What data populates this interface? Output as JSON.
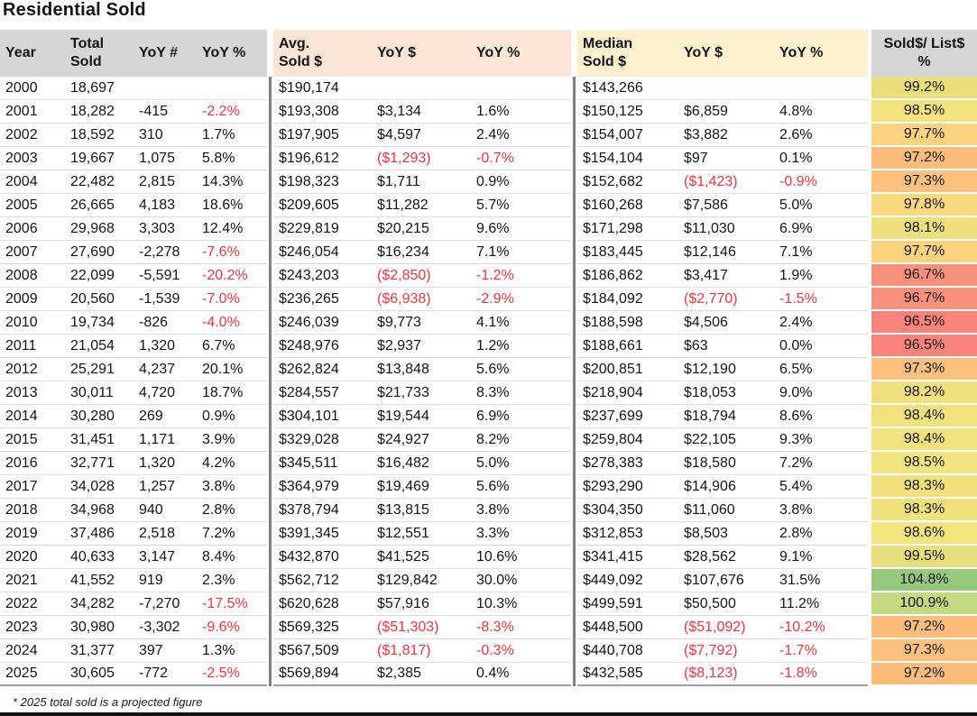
{
  "title": "Residential Sold",
  "footnote": "* 2025 total sold is a projected figure",
  "colors": {
    "header_left_group": "#d6d6d6",
    "header_avg_group": "#fbe5d6",
    "header_median_group": "#fcf0cd",
    "header_ratio": "#d6d6d6",
    "negative_text": "#f5333f",
    "section_divider": "#7f7f7f",
    "row_line": "#dcdcdc",
    "bottom_bar": "#111111"
  },
  "chart_data": {
    "type": "table",
    "title": "Residential Sold",
    "column_groups": [
      "",
      "Avg. Sold",
      "Median Sold",
      "Sold/List"
    ],
    "columns": [
      "Year",
      "Total\nSold",
      "YoY #",
      "YoY %",
      "Avg.\nSold $",
      "YoY $",
      "YoY %",
      "Median\nSold $",
      "YoY $",
      "YoY %",
      "Sold$/ List$\n%"
    ],
    "rows": [
      {
        "year": "2000",
        "total_sold": "18,697",
        "yoy_num": "",
        "yoy_pct": "",
        "avg_sold": "$190,174",
        "avg_yoy_dollar": "",
        "avg_yoy_pct": "",
        "med_sold": "$143,266",
        "med_yoy_dollar": "",
        "med_yoy_pct": "",
        "sold_list_pct": "99.2%",
        "sold_list_color": "#e9e07c"
      },
      {
        "year": "2001",
        "total_sold": "18,282",
        "yoy_num": "-415",
        "yoy_pct": "-2.2%",
        "avg_sold": "$193,308",
        "avg_yoy_dollar": "$3,134",
        "avg_yoy_pct": "1.6%",
        "med_sold": "$150,125",
        "med_yoy_dollar": "$6,859",
        "med_yoy_pct": "4.8%",
        "sold_list_pct": "98.5%",
        "sold_list_color": "#f3e37e"
      },
      {
        "year": "2002",
        "total_sold": "18,592",
        "yoy_num": "310",
        "yoy_pct": "1.7%",
        "avg_sold": "$197,905",
        "avg_yoy_dollar": "$4,597",
        "avg_yoy_pct": "2.4%",
        "med_sold": "$154,007",
        "med_yoy_dollar": "$3,882",
        "med_yoy_pct": "2.6%",
        "sold_list_pct": "97.7%",
        "sold_list_color": "#fbd27e"
      },
      {
        "year": "2003",
        "total_sold": "19,667",
        "yoy_num": "1,075",
        "yoy_pct": "5.8%",
        "avg_sold": "$196,612",
        "avg_yoy_dollar": "($1,293)",
        "avg_yoy_pct": "-0.7%",
        "med_sold": "$154,104",
        "med_yoy_dollar": "$97",
        "med_yoy_pct": "0.1%",
        "sold_list_pct": "97.2%",
        "sold_list_color": "#fcbd7b"
      },
      {
        "year": "2004",
        "total_sold": "22,482",
        "yoy_num": "2,815",
        "yoy_pct": "14.3%",
        "avg_sold": "$198,323",
        "avg_yoy_dollar": "$1,711",
        "avg_yoy_pct": "0.9%",
        "med_sold": "$152,682",
        "med_yoy_dollar": "($1,423)",
        "med_yoy_pct": "-0.9%",
        "sold_list_pct": "97.3%",
        "sold_list_color": "#fcc17c"
      },
      {
        "year": "2005",
        "total_sold": "26,665",
        "yoy_num": "4,183",
        "yoy_pct": "18.6%",
        "avg_sold": "$209,605",
        "avg_yoy_dollar": "$11,282",
        "avg_yoy_pct": "5.7%",
        "med_sold": "$160,268",
        "med_yoy_dollar": "$7,586",
        "med_yoy_pct": "5.0%",
        "sold_list_pct": "97.8%",
        "sold_list_color": "#f9d97e"
      },
      {
        "year": "2006",
        "total_sold": "29,968",
        "yoy_num": "3,303",
        "yoy_pct": "12.4%",
        "avg_sold": "$229,819",
        "avg_yoy_dollar": "$20,215",
        "avg_yoy_pct": "9.6%",
        "med_sold": "$171,298",
        "med_yoy_dollar": "$11,030",
        "med_yoy_pct": "6.9%",
        "sold_list_pct": "98.1%",
        "sold_list_color": "#f0e07d"
      },
      {
        "year": "2007",
        "total_sold": "27,690",
        "yoy_num": "-2,278",
        "yoy_pct": "-7.6%",
        "avg_sold": "$246,054",
        "avg_yoy_dollar": "$16,234",
        "avg_yoy_pct": "7.1%",
        "med_sold": "$183,445",
        "med_yoy_dollar": "$12,146",
        "med_yoy_pct": "7.1%",
        "sold_list_pct": "97.7%",
        "sold_list_color": "#fbd27e"
      },
      {
        "year": "2008",
        "total_sold": "22,099",
        "yoy_num": "-5,591",
        "yoy_pct": "-20.2%",
        "avg_sold": "$243,203",
        "avg_yoy_dollar": "($2,850)",
        "avg_yoy_pct": "-1.2%",
        "med_sold": "$186,862",
        "med_yoy_dollar": "$3,417",
        "med_yoy_pct": "1.9%",
        "sold_list_pct": "96.7%",
        "sold_list_color": "#f8917c"
      },
      {
        "year": "2009",
        "total_sold": "20,560",
        "yoy_num": "-1,539",
        "yoy_pct": "-7.0%",
        "avg_sold": "$236,265",
        "avg_yoy_dollar": "($6,938)",
        "avg_yoy_pct": "-2.9%",
        "med_sold": "$184,092",
        "med_yoy_dollar": "($2,770)",
        "med_yoy_pct": "-1.5%",
        "sold_list_pct": "96.7%",
        "sold_list_color": "#f8917c"
      },
      {
        "year": "2010",
        "total_sold": "19,734",
        "yoy_num": "-826",
        "yoy_pct": "-4.0%",
        "avg_sold": "$246,039",
        "avg_yoy_dollar": "$9,773",
        "avg_yoy_pct": "4.1%",
        "med_sold": "$188,598",
        "med_yoy_dollar": "$4,506",
        "med_yoy_pct": "2.4%",
        "sold_list_pct": "96.5%",
        "sold_list_color": "#f7837b"
      },
      {
        "year": "2011",
        "total_sold": "21,054",
        "yoy_num": "1,320",
        "yoy_pct": "6.7%",
        "avg_sold": "$248,976",
        "avg_yoy_dollar": "$2,937",
        "avg_yoy_pct": "1.2%",
        "med_sold": "$188,661",
        "med_yoy_dollar": "$63",
        "med_yoy_pct": "0.0%",
        "sold_list_pct": "96.5%",
        "sold_list_color": "#f7837b"
      },
      {
        "year": "2012",
        "total_sold": "25,291",
        "yoy_num": "4,237",
        "yoy_pct": "20.1%",
        "avg_sold": "$262,824",
        "avg_yoy_dollar": "$13,848",
        "avg_yoy_pct": "5.6%",
        "med_sold": "$200,851",
        "med_yoy_dollar": "$12,190",
        "med_yoy_pct": "6.5%",
        "sold_list_pct": "97.3%",
        "sold_list_color": "#fcc17c"
      },
      {
        "year": "2013",
        "total_sold": "30,011",
        "yoy_num": "4,720",
        "yoy_pct": "18.7%",
        "avg_sold": "$284,557",
        "avg_yoy_dollar": "$21,733",
        "avg_yoy_pct": "8.3%",
        "med_sold": "$218,904",
        "med_yoy_dollar": "$18,053",
        "med_yoy_pct": "9.0%",
        "sold_list_pct": "98.2%",
        "sold_list_color": "#f1e17d"
      },
      {
        "year": "2014",
        "total_sold": "30,280",
        "yoy_num": "269",
        "yoy_pct": "0.9%",
        "avg_sold": "$304,101",
        "avg_yoy_dollar": "$19,544",
        "avg_yoy_pct": "6.9%",
        "med_sold": "$237,699",
        "med_yoy_dollar": "$18,794",
        "med_yoy_pct": "8.6%",
        "sold_list_pct": "98.4%",
        "sold_list_color": "#f2e27e"
      },
      {
        "year": "2015",
        "total_sold": "31,451",
        "yoy_num": "1,171",
        "yoy_pct": "3.9%",
        "avg_sold": "$329,028",
        "avg_yoy_dollar": "$24,927",
        "avg_yoy_pct": "8.2%",
        "med_sold": "$259,804",
        "med_yoy_dollar": "$22,105",
        "med_yoy_pct": "9.3%",
        "sold_list_pct": "98.4%",
        "sold_list_color": "#f2e27e"
      },
      {
        "year": "2016",
        "total_sold": "32,771",
        "yoy_num": "1,320",
        "yoy_pct": "4.2%",
        "avg_sold": "$345,511",
        "avg_yoy_dollar": "$16,482",
        "avg_yoy_pct": "5.0%",
        "med_sold": "$278,383",
        "med_yoy_dollar": "$18,580",
        "med_yoy_pct": "7.2%",
        "sold_list_pct": "98.5%",
        "sold_list_color": "#f3e37e"
      },
      {
        "year": "2017",
        "total_sold": "34,028",
        "yoy_num": "1,257",
        "yoy_pct": "3.8%",
        "avg_sold": "$364,979",
        "avg_yoy_dollar": "$19,469",
        "avg_yoy_pct": "5.6%",
        "med_sold": "$293,290",
        "med_yoy_dollar": "$14,906",
        "med_yoy_pct": "5.4%",
        "sold_list_pct": "98.3%",
        "sold_list_color": "#f1e17d"
      },
      {
        "year": "2018",
        "total_sold": "34,968",
        "yoy_num": "940",
        "yoy_pct": "2.8%",
        "avg_sold": "$378,794",
        "avg_yoy_dollar": "$13,815",
        "avg_yoy_pct": "3.8%",
        "med_sold": "$304,350",
        "med_yoy_dollar": "$11,060",
        "med_yoy_pct": "3.8%",
        "sold_list_pct": "98.3%",
        "sold_list_color": "#f1e17d"
      },
      {
        "year": "2019",
        "total_sold": "37,486",
        "yoy_num": "2,518",
        "yoy_pct": "7.2%",
        "avg_sold": "$391,345",
        "avg_yoy_dollar": "$12,551",
        "avg_yoy_pct": "3.3%",
        "med_sold": "$312,853",
        "med_yoy_dollar": "$8,503",
        "med_yoy_pct": "2.8%",
        "sold_list_pct": "98.6%",
        "sold_list_color": "#f4e47e"
      },
      {
        "year": "2020",
        "total_sold": "40,633",
        "yoy_num": "3,147",
        "yoy_pct": "8.4%",
        "avg_sold": "$432,870",
        "avg_yoy_dollar": "$41,525",
        "avg_yoy_pct": "10.6%",
        "med_sold": "$341,415",
        "med_yoy_dollar": "$28,562",
        "med_yoy_pct": "9.1%",
        "sold_list_pct": "99.5%",
        "sold_list_color": "#e6df7c"
      },
      {
        "year": "2021",
        "total_sold": "41,552",
        "yoy_num": "919",
        "yoy_pct": "2.3%",
        "avg_sold": "$562,712",
        "avg_yoy_dollar": "$129,842",
        "avg_yoy_pct": "30.0%",
        "med_sold": "$449,092",
        "med_yoy_dollar": "$107,676",
        "med_yoy_pct": "31.5%",
        "sold_list_pct": "104.8%",
        "sold_list_color": "#95c87d"
      },
      {
        "year": "2022",
        "total_sold": "34,282",
        "yoy_num": "-7,270",
        "yoy_pct": "-17.5%",
        "avg_sold": "$620,628",
        "avg_yoy_dollar": "$57,916",
        "avg_yoy_pct": "10.3%",
        "med_sold": "$499,591",
        "med_yoy_dollar": "$50,500",
        "med_yoy_pct": "11.2%",
        "sold_list_pct": "100.9%",
        "sold_list_color": "#c5da80"
      },
      {
        "year": "2023",
        "total_sold": "30,980",
        "yoy_num": "-3,302",
        "yoy_pct": "-9.6%",
        "avg_sold": "$569,325",
        "avg_yoy_dollar": "($51,303)",
        "avg_yoy_pct": "-8.3%",
        "med_sold": "$448,500",
        "med_yoy_dollar": "($51,092)",
        "med_yoy_pct": "-10.2%",
        "sold_list_pct": "97.2%",
        "sold_list_color": "#fcbd7b"
      },
      {
        "year": "2024",
        "total_sold": "31,377",
        "yoy_num": "397",
        "yoy_pct": "1.3%",
        "avg_sold": "$567,509",
        "avg_yoy_dollar": "($1,817)",
        "avg_yoy_pct": "-0.3%",
        "med_sold": "$440,708",
        "med_yoy_dollar": "($7,792)",
        "med_yoy_pct": "-1.7%",
        "sold_list_pct": "97.3%",
        "sold_list_color": "#fcc17c"
      },
      {
        "year": "2025",
        "total_sold": "30,605",
        "yoy_num": "-772",
        "yoy_pct": "-2.5%",
        "avg_sold": "$569,894",
        "avg_yoy_dollar": "$2,385",
        "avg_yoy_pct": "0.4%",
        "med_sold": "$432,585",
        "med_yoy_dollar": "($8,123)",
        "med_yoy_pct": "-1.8%",
        "sold_list_pct": "97.2%",
        "sold_list_color": "#fcbd7b"
      }
    ]
  }
}
